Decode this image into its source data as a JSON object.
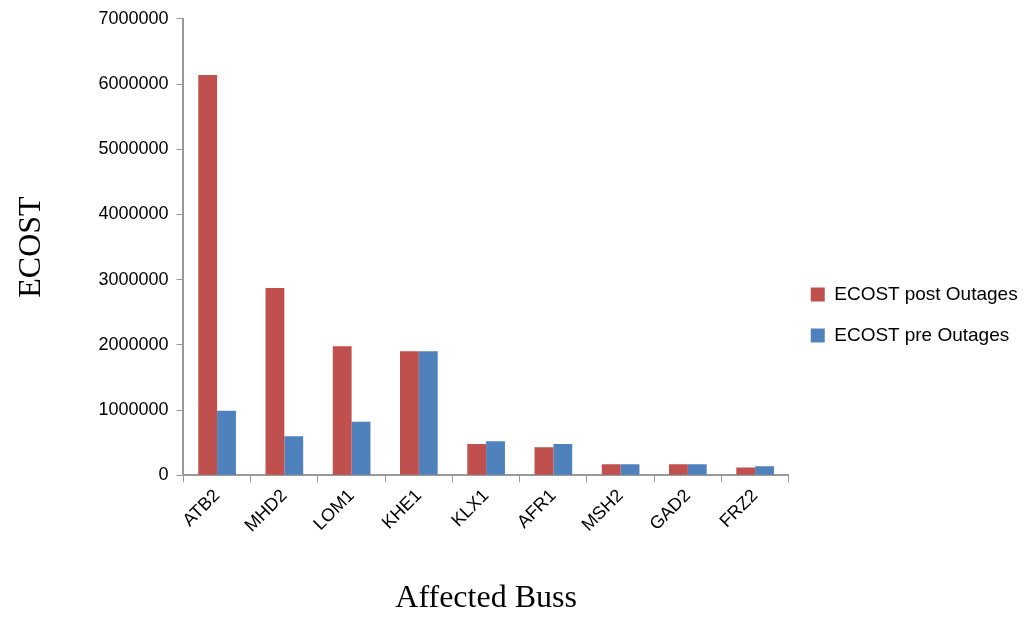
{
  "chart_data": {
    "type": "bar",
    "xlabel": "Affected Buss",
    "ylabel": "ECOST",
    "categories": [
      "ATB2",
      "MHD2",
      "LOM1",
      "KHE1",
      "KLX1",
      "AFR1",
      "MSH2",
      "GAD2",
      "FRZ2"
    ],
    "series": [
      {
        "name": "ECOST post Outages",
        "color": "#c0504d",
        "values": [
          6140000,
          2870000,
          1980000,
          1900000,
          480000,
          430000,
          170000,
          170000,
          120000
        ]
      },
      {
        "name": "ECOST pre Outages",
        "color": "#4f81bd",
        "values": [
          990000,
          600000,
          820000,
          1900000,
          520000,
          480000,
          170000,
          170000,
          140000
        ]
      }
    ],
    "ylim": [
      0,
      7000000
    ],
    "yticks": [
      0,
      1000000,
      2000000,
      3000000,
      4000000,
      5000000,
      6000000,
      7000000
    ],
    "grid": false,
    "legend": "right"
  }
}
